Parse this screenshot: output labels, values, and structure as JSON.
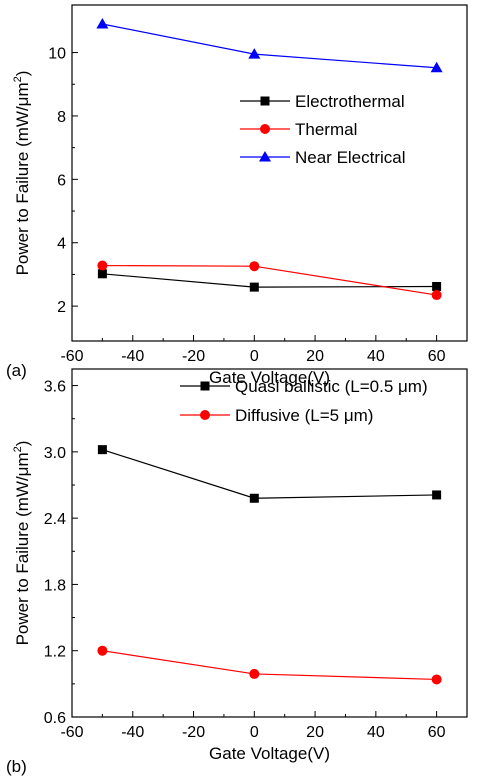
{
  "chart_data": [
    {
      "type": "line",
      "panel_label": "(a)",
      "xlabel": "Gate Voltage(V)",
      "ylabel_main": "Power to Failure (mW/",
      "ylabel_unit_base": "μm",
      "ylabel_sup": "2",
      "ylabel_close": ")",
      "xlim": [
        -60,
        70
      ],
      "ylim": [
        0.9,
        11.5
      ],
      "xticks": [
        -60,
        -40,
        -20,
        0,
        20,
        40,
        60
      ],
      "yticks": [
        2,
        4,
        6,
        8,
        10
      ],
      "legend_position": "center-right",
      "x": [
        -50,
        0,
        60
      ],
      "series": [
        {
          "name": "Electrothermal",
          "color": "#000000",
          "marker": "square",
          "values": [
            3.02,
            2.6,
            2.62
          ]
        },
        {
          "name": "Thermal",
          "color": "#ff0000",
          "marker": "circle",
          "values": [
            3.28,
            3.26,
            2.35
          ]
        },
        {
          "name": "Near Electrical",
          "color": "#0000ff",
          "marker": "triangle",
          "values": [
            10.9,
            9.95,
            9.52
          ]
        }
      ]
    },
    {
      "type": "line",
      "panel_label": "(b)",
      "xlabel": "Gate Voltage(V)",
      "ylabel_main": "Power to Failure (mW/",
      "ylabel_unit_base": "μm",
      "ylabel_sup": "2",
      "ylabel_close": ")",
      "xlim": [
        -60,
        70
      ],
      "ylim": [
        0.6,
        3.75
      ],
      "xticks": [
        -60,
        -40,
        -20,
        0,
        20,
        40,
        60
      ],
      "yticks": [
        0.6,
        1.2,
        1.8,
        2.4,
        3.0,
        3.6
      ],
      "legend_position": "top-right",
      "x": [
        -50,
        0,
        60
      ],
      "series": [
        {
          "name": "Quasi ballistic (L=0.5 μm)",
          "color": "#000000",
          "marker": "square",
          "values": [
            3.02,
            2.58,
            2.61
          ]
        },
        {
          "name": "Diffusive (L=5 μm)",
          "color": "#ff0000",
          "marker": "circle",
          "values": [
            1.2,
            0.99,
            0.94
          ]
        }
      ]
    }
  ]
}
